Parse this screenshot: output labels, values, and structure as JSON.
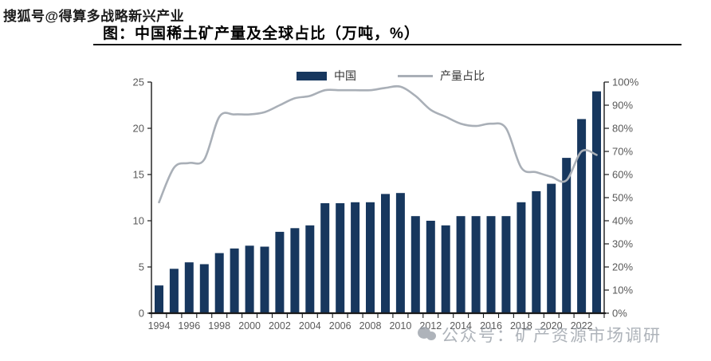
{
  "watermarks": {
    "top": "搜狐号@得算多战略新兴产业",
    "bottom": "公众号：矿产资源市场调研"
  },
  "title": "图：中国稀土矿产量及全球占比（万吨，%）",
  "legend": {
    "bar_label": "中国",
    "line_label": "产量占比"
  },
  "colors": {
    "bar": "#17375E",
    "line": "#A9AFB7",
    "axis": "#1a1a1a",
    "tick_label": "#595959",
    "watermark": "#9aa1a9"
  },
  "chart_data": {
    "type": "bar",
    "title": "图：中国稀土矿产量及全球占比（万吨，%）",
    "categories": [
      1994,
      1995,
      1996,
      1997,
      1998,
      1999,
      2000,
      2001,
      2002,
      2003,
      2004,
      2005,
      2006,
      2007,
      2008,
      2009,
      2010,
      2011,
      2012,
      2013,
      2014,
      2015,
      2016,
      2017,
      2018,
      2019,
      2020,
      2021,
      2022,
      2023
    ],
    "series": [
      {
        "name": "中国",
        "type": "bar",
        "axis": "left",
        "unit": "万吨",
        "values": [
          3.0,
          4.8,
          5.5,
          5.3,
          6.5,
          7.0,
          7.3,
          7.2,
          8.8,
          9.2,
          9.5,
          11.9,
          11.9,
          12.0,
          12.0,
          12.9,
          13.0,
          10.5,
          10.0,
          9.5,
          10.5,
          10.5,
          10.5,
          10.5,
          12.0,
          13.2,
          14.0,
          16.8,
          21.0,
          24.0
        ]
      },
      {
        "name": "产量占比",
        "type": "line",
        "axis": "right",
        "unit": "%",
        "values": [
          48,
          63,
          65,
          66.5,
          85,
          86,
          86,
          87,
          90,
          93,
          94,
          96.5,
          96.5,
          96.5,
          96.5,
          97.5,
          98,
          94,
          88,
          85,
          82,
          81,
          82,
          80,
          63,
          61,
          59,
          57.5,
          70,
          68.5
        ]
      }
    ],
    "left_axis": {
      "min": 0,
      "max": 25,
      "ticks": [
        0,
        5,
        10,
        15,
        20,
        25
      ]
    },
    "right_axis": {
      "min": 0,
      "max": 100,
      "ticks": [
        "0%",
        "10%",
        "20%",
        "30%",
        "40%",
        "50%",
        "60%",
        "70%",
        "80%",
        "90%",
        "100%"
      ]
    },
    "x_tick_labels": [
      "1994",
      "1996",
      "1998",
      "2000",
      "2002",
      "2004",
      "2006",
      "2008",
      "2010",
      "2012",
      "2014",
      "2016",
      "2018",
      "2020",
      "2022"
    ],
    "grid": false,
    "legend_position": "top"
  }
}
